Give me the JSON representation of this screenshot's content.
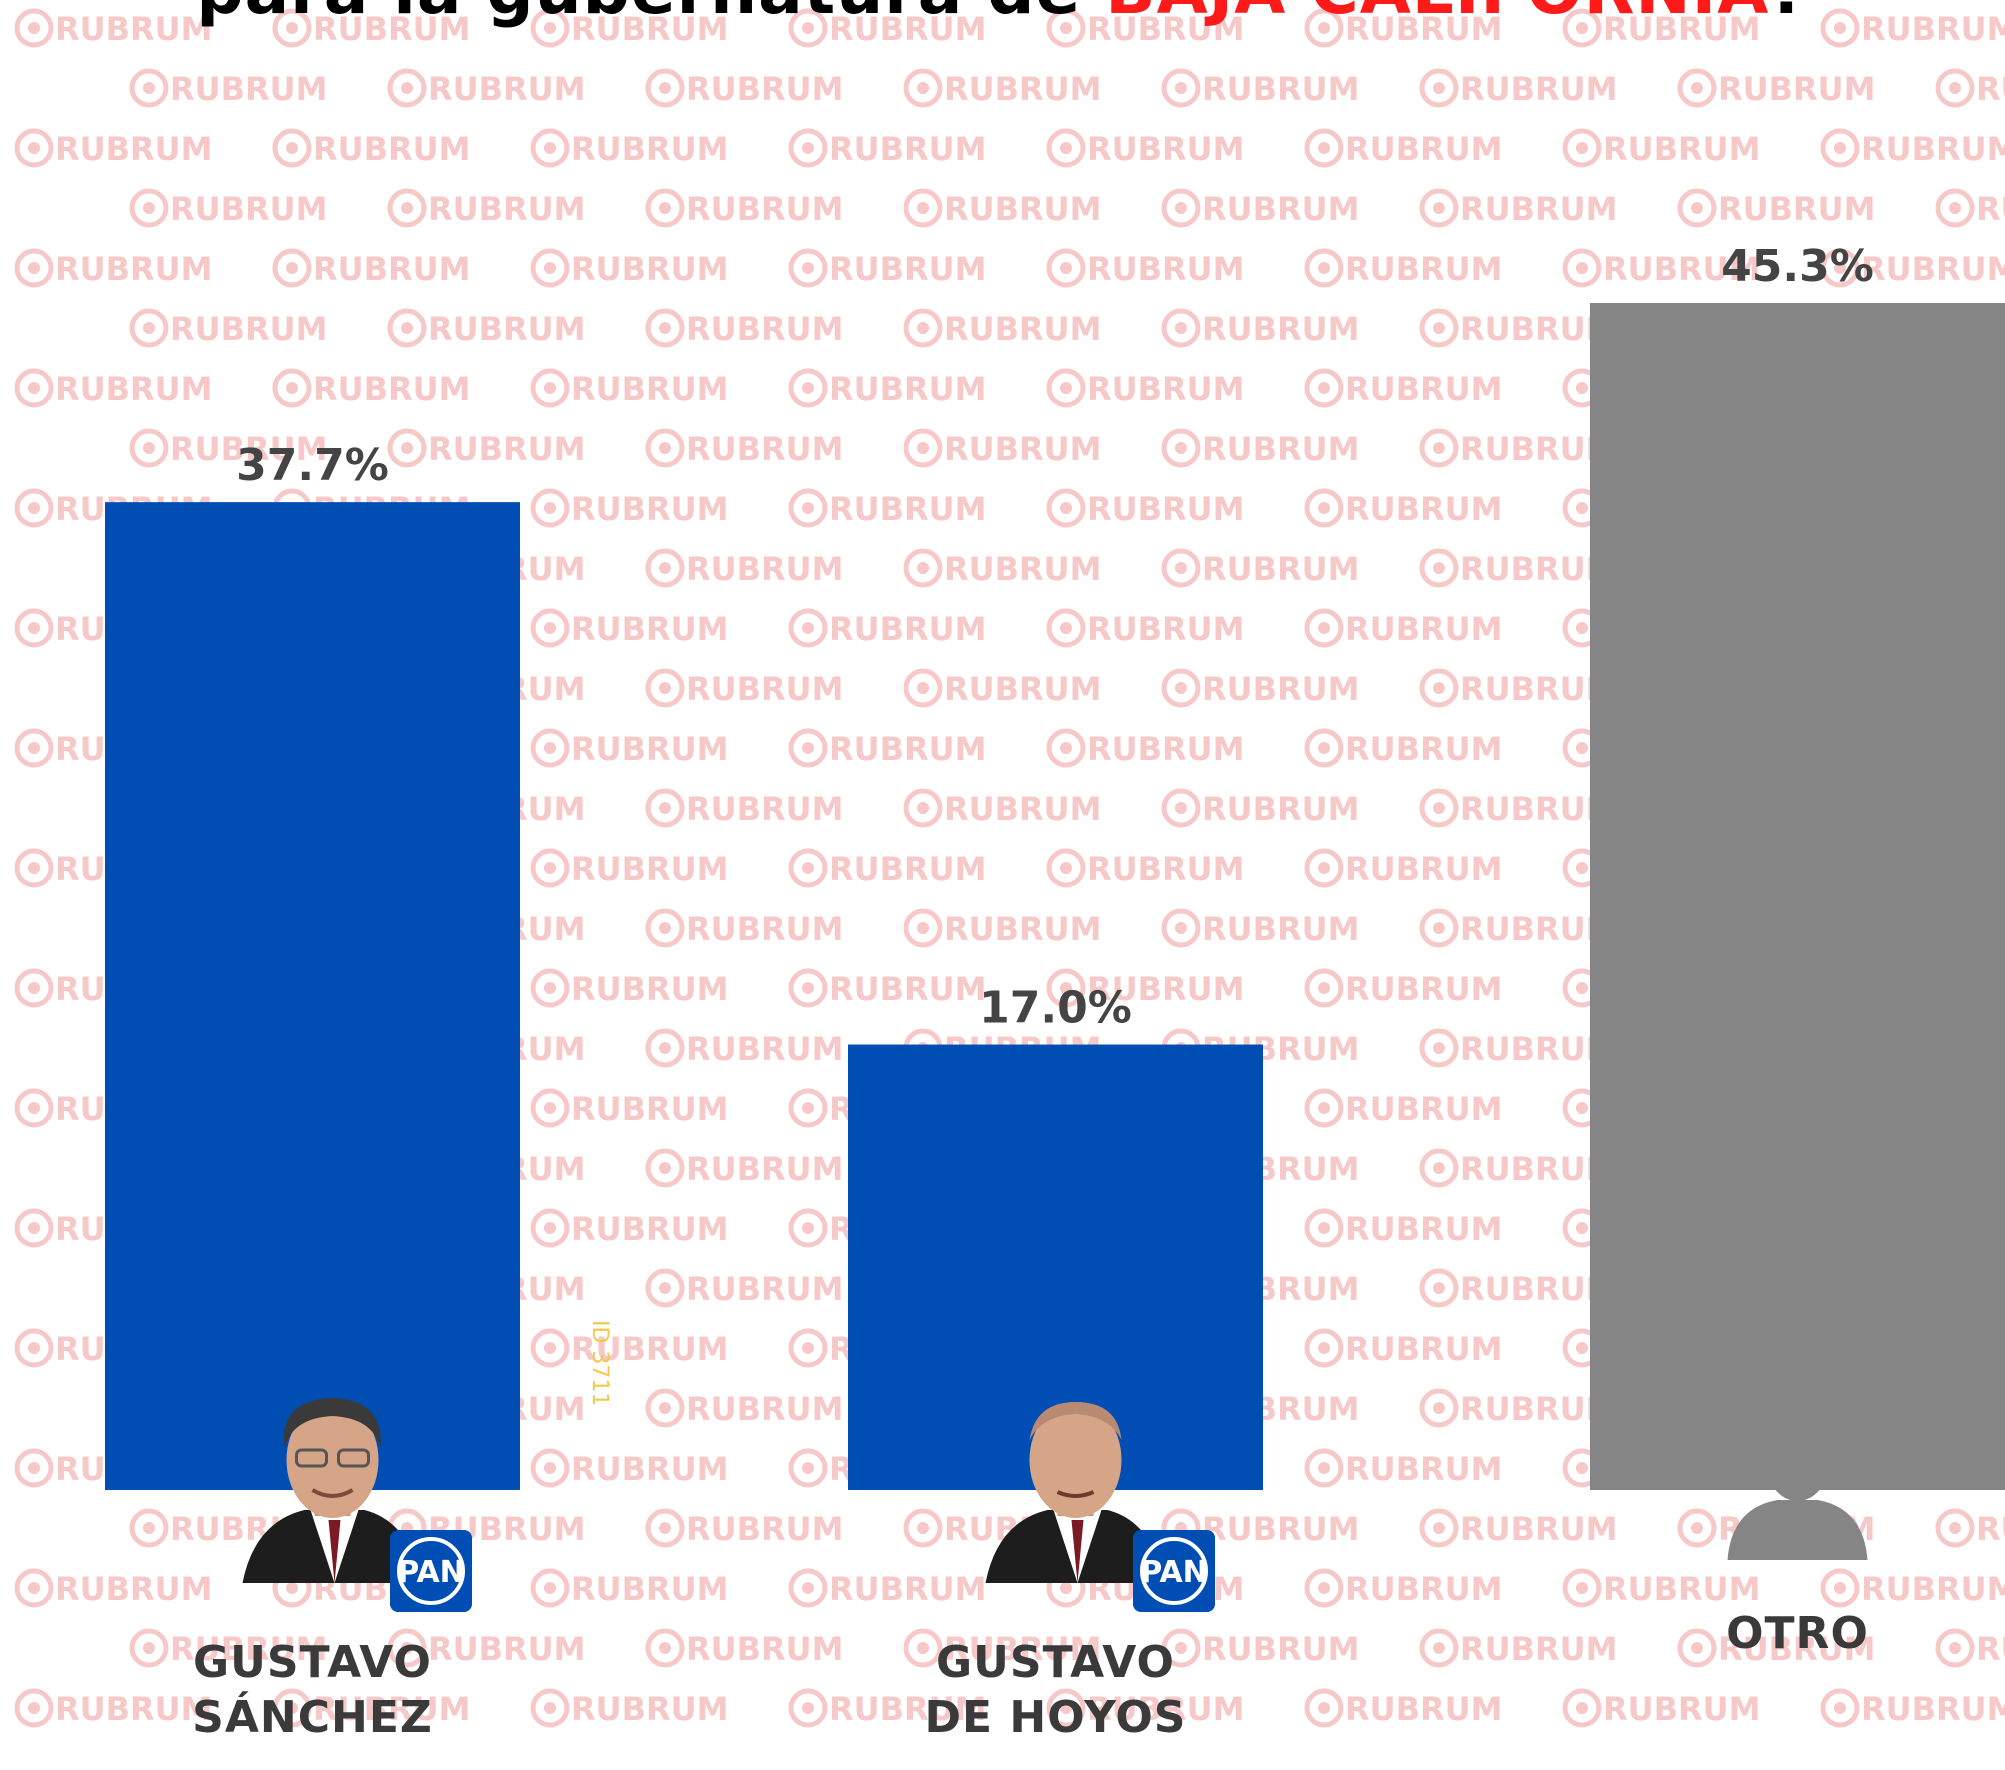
{
  "title": {
    "prefix": "para la gubernatura de ",
    "highlight": "BAJA CALIFORNIA",
    "suffix": "?"
  },
  "watermark_text": "RUBRUM",
  "id_tag": "ID 3711",
  "colors": {
    "pan_blue": "#004db3",
    "other_gray": "#868586",
    "title_red": "#ff1a1a",
    "watermark": "#f6c8c8"
  },
  "chart_data": {
    "type": "bar",
    "categories": [
      {
        "lines": [
          "GUSTAVO",
          "SÁNCHEZ"
        ],
        "party": "PAN",
        "icon": "candidate-photo"
      },
      {
        "lines": [
          "GUSTAVO",
          "DE HOYOS"
        ],
        "party": "PAN",
        "icon": "candidate-photo"
      },
      {
        "lines": [
          "OTRO"
        ],
        "party": "",
        "icon": "generic-person-icon"
      }
    ],
    "values": [
      37.7,
      17.0,
      45.3
    ],
    "value_labels": [
      "37.7%",
      "17.0%",
      "45.3%"
    ],
    "bar_colors": [
      "#004db3",
      "#004db3",
      "#868586"
    ],
    "unit": "%",
    "ylim": [
      0,
      45.3
    ],
    "grid": false,
    "legend": "none"
  }
}
